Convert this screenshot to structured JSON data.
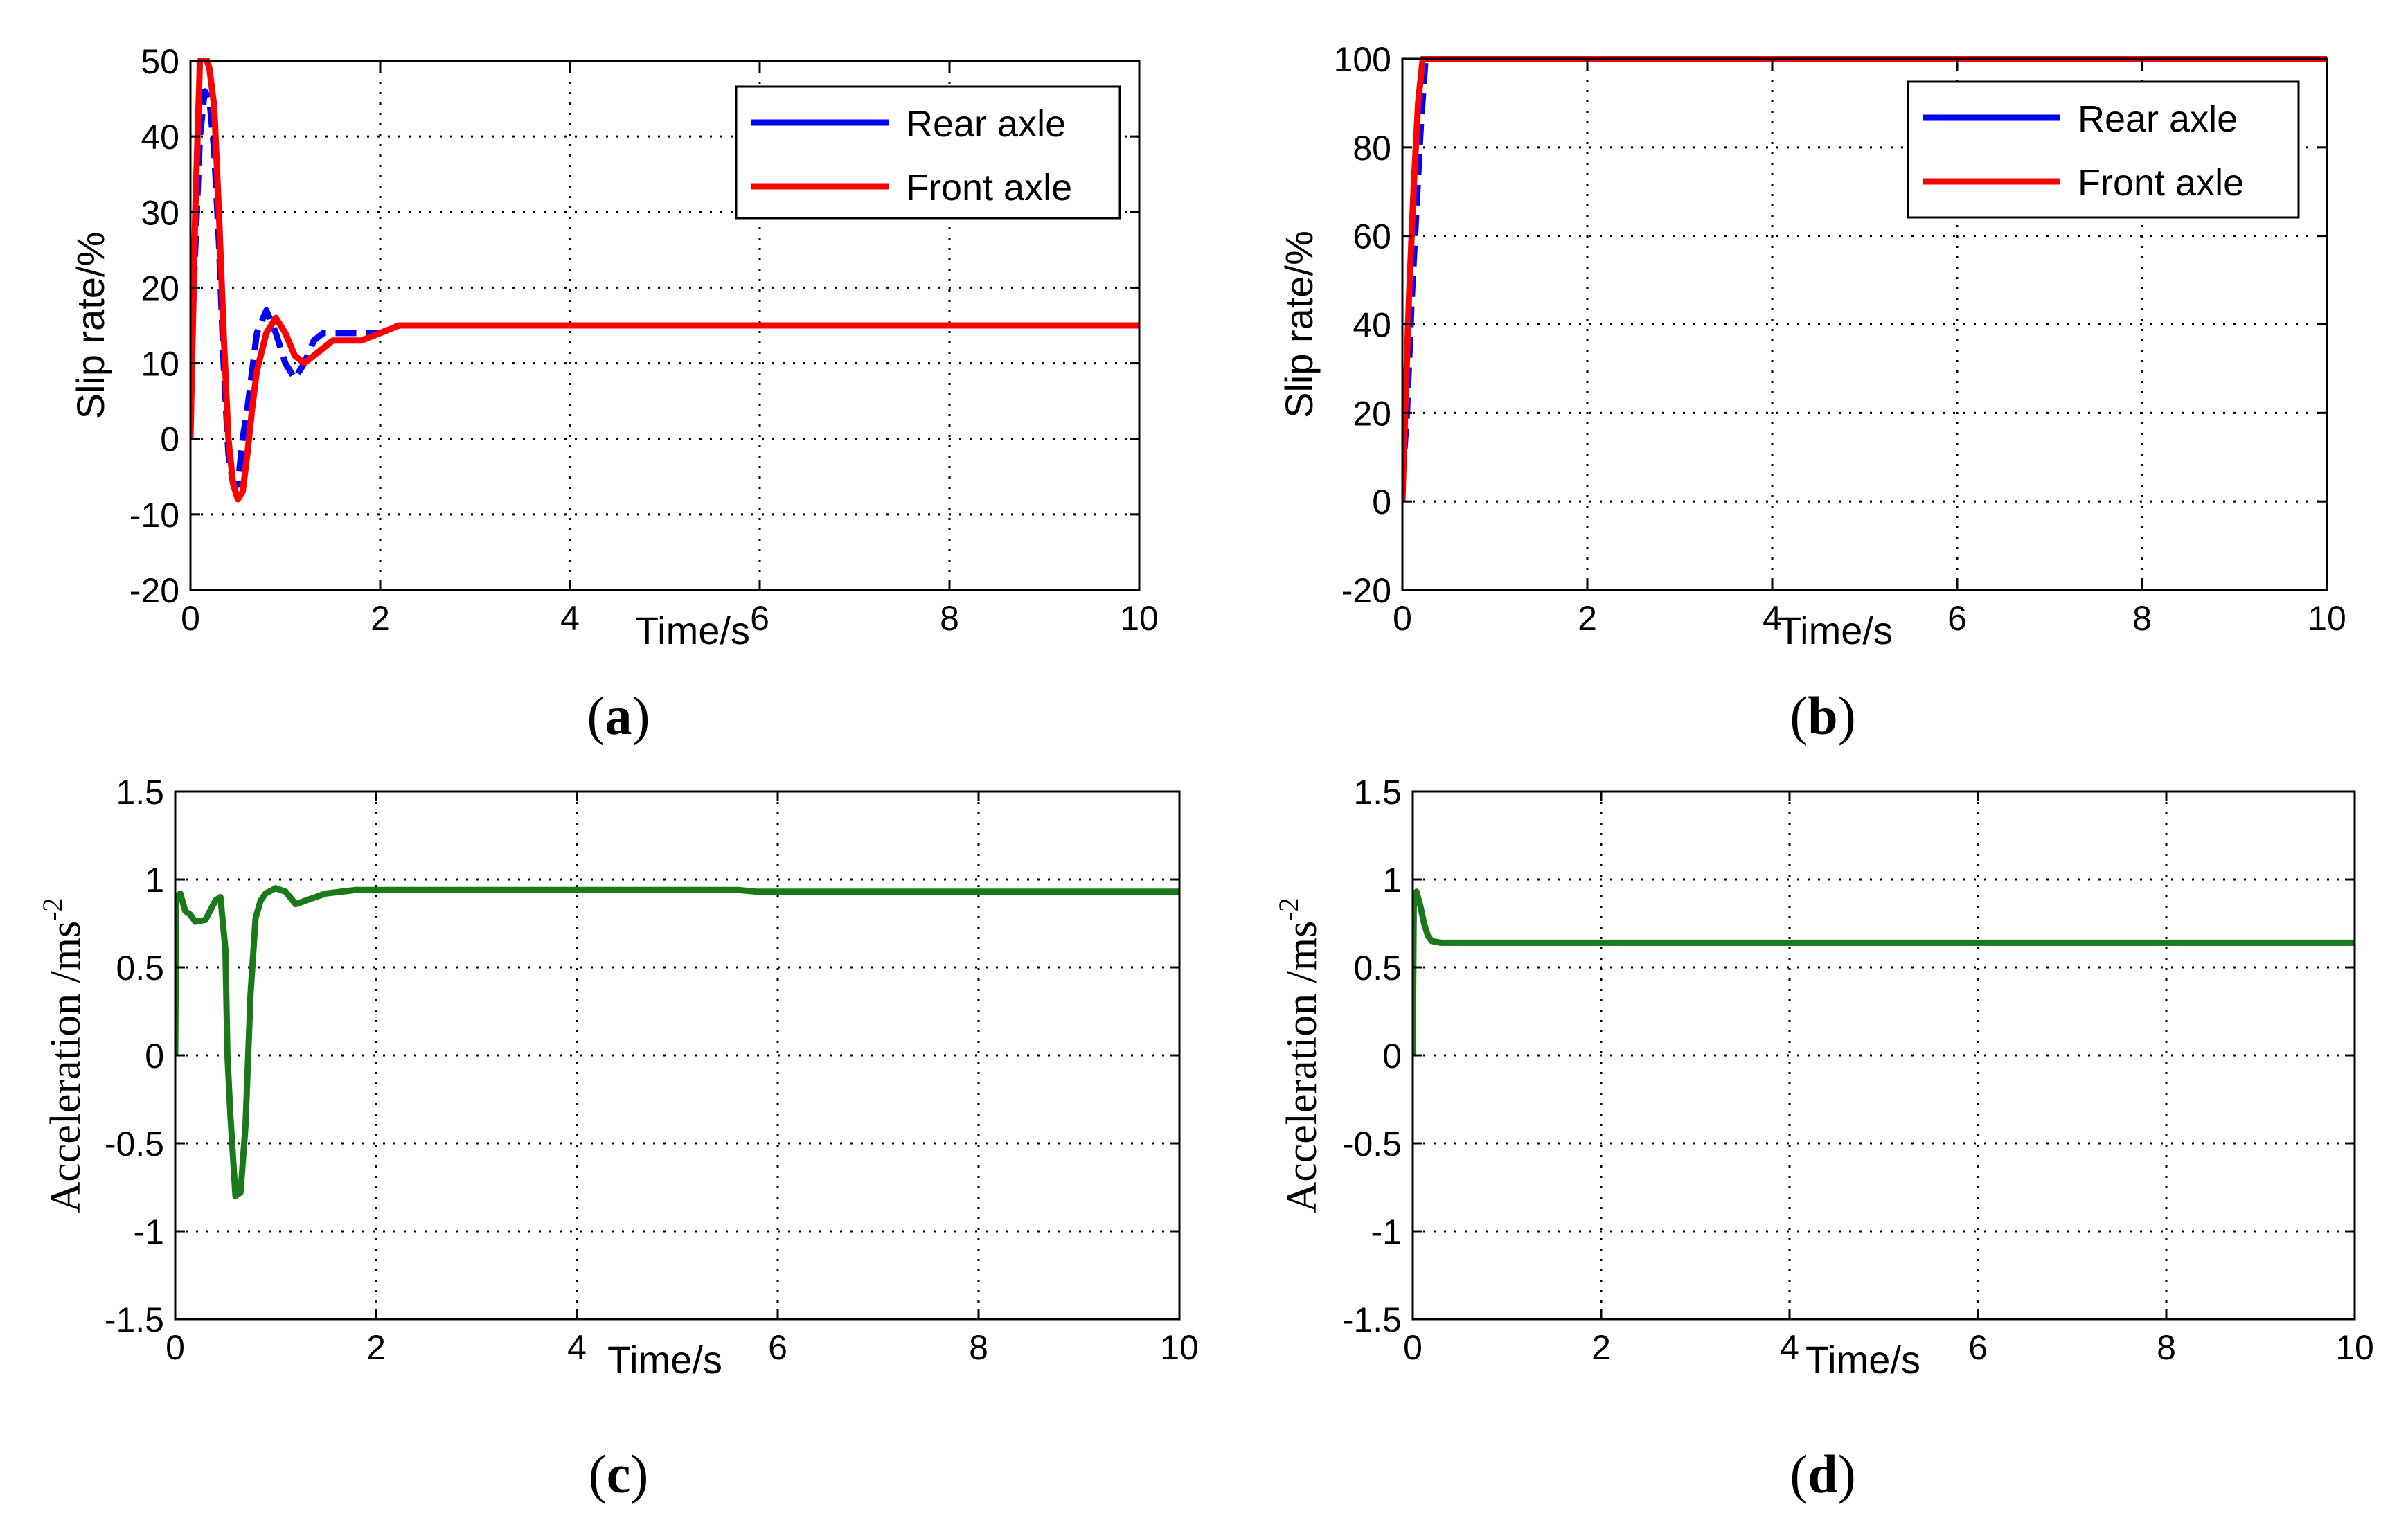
{
  "chart_data": [
    {
      "id": "a",
      "type": "line",
      "caption_letter": "a",
      "xlabel": "Time/s",
      "ylabel": "Slip rate/%",
      "xlim": [
        0,
        10
      ],
      "ylim": [
        -20,
        50
      ],
      "xticks": [
        0,
        2,
        4,
        6,
        8,
        10
      ],
      "yticks": [
        -20,
        -10,
        0,
        10,
        20,
        30,
        40,
        50
      ],
      "grid": true,
      "legend": {
        "position": "top-right",
        "entries": [
          "Rear axle",
          "Front axle"
        ]
      },
      "series": [
        {
          "name": "Rear axle",
          "color": "#0000ff",
          "dashed": true,
          "x": [
            0,
            0.05,
            0.1,
            0.15,
            0.2,
            0.25,
            0.3,
            0.35,
            0.4,
            0.45,
            0.5,
            0.55,
            0.6,
            0.65,
            0.7,
            0.8,
            0.9,
            1.0,
            1.1,
            1.2,
            1.3,
            1.4,
            1.5,
            1.6,
            1.8,
            2.0,
            2.2,
            2.4,
            2.6,
            3.0,
            4.0,
            5.0,
            5.9
          ],
          "y": [
            8,
            25,
            40,
            46,
            45,
            38,
            26,
            10,
            -2,
            -6,
            -6,
            0,
            4,
            9,
            14,
            17,
            14,
            10,
            8,
            10,
            13,
            14,
            14,
            14,
            14,
            14,
            15,
            15,
            15,
            15,
            15,
            15,
            15
          ]
        },
        {
          "name": "Front axle",
          "color": "#ff0000",
          "dashed": false,
          "x": [
            0,
            0.05,
            0.1,
            0.15,
            0.2,
            0.25,
            0.3,
            0.35,
            0.4,
            0.45,
            0.5,
            0.55,
            0.6,
            0.65,
            0.7,
            0.8,
            0.9,
            1.0,
            1.1,
            1.2,
            1.3,
            1.4,
            1.5,
            1.6,
            1.8,
            2.0,
            2.2,
            2.4,
            2.6,
            3.0,
            4.0,
            5.0,
            6.0,
            8.0,
            10.0
          ],
          "y": [
            0,
            30,
            50,
            51,
            49,
            44,
            30,
            14,
            0,
            -6,
            -8,
            -7,
            -2,
            4,
            9,
            14,
            16,
            14,
            11,
            10,
            11,
            12,
            13,
            13,
            13,
            14,
            15,
            15,
            15,
            15,
            15,
            15,
            15,
            15,
            15
          ]
        }
      ]
    },
    {
      "id": "b",
      "type": "line",
      "caption_letter": "b",
      "xlabel": "Time/s",
      "ylabel": "Slip rate/%",
      "xlim": [
        0,
        10
      ],
      "ylim": [
        -20,
        100
      ],
      "xticks": [
        0,
        2,
        4,
        6,
        8,
        10
      ],
      "yticks": [
        -20,
        0,
        20,
        40,
        60,
        80,
        100
      ],
      "grid": true,
      "legend": {
        "position": "top-right",
        "entries": [
          "Rear axle",
          "Front axle"
        ]
      },
      "series": [
        {
          "name": "Rear axle",
          "color": "#0000ff",
          "dashed": true,
          "x": [
            0,
            0.05,
            0.1,
            0.15,
            0.2,
            0.25,
            0.3,
            1,
            10
          ],
          "y": [
            5,
            20,
            45,
            65,
            85,
            100,
            100,
            100,
            100
          ]
        },
        {
          "name": "Front axle",
          "color": "#ff0000",
          "dashed": false,
          "x": [
            0,
            0.03,
            0.07,
            0.12,
            0.17,
            0.22,
            0.3,
            1,
            10
          ],
          "y": [
            0,
            20,
            45,
            70,
            90,
            100,
            100,
            100,
            100
          ]
        }
      ]
    },
    {
      "id": "c",
      "type": "line",
      "caption_letter": "c",
      "xlabel": "Time/s",
      "ylabel": "Acceleration /ms",
      "ylabel_sup": "-2",
      "xlim": [
        0,
        10
      ],
      "ylim": [
        -1.5,
        1.5
      ],
      "xticks": [
        0,
        2,
        4,
        6,
        8,
        10
      ],
      "yticks": [
        -1.5,
        -1,
        -0.5,
        0,
        0.5,
        1,
        1.5
      ],
      "ytick_labels": [
        "-1.5",
        "-1",
        "-0.5",
        "0",
        "0.5",
        "1",
        "1.5"
      ],
      "grid": true,
      "series": [
        {
          "name": "Acceleration",
          "color": "#1a7a1a",
          "dashed": false,
          "x": [
            0,
            0.01,
            0.05,
            0.1,
            0.15,
            0.2,
            0.3,
            0.4,
            0.45,
            0.5,
            0.52,
            0.55,
            0.6,
            0.65,
            0.7,
            0.75,
            0.8,
            0.85,
            0.9,
            1.0,
            1.1,
            1.2,
            1.3,
            1.5,
            1.8,
            2.0,
            3.0,
            4.0,
            5.0,
            5.6,
            5.8,
            7.0,
            8.0,
            10.0
          ],
          "y": [
            0,
            0.9,
            0.92,
            0.82,
            0.8,
            0.76,
            0.77,
            0.88,
            0.9,
            0.6,
            0.0,
            -0.35,
            -0.8,
            -0.78,
            -0.4,
            0.35,
            0.78,
            0.88,
            0.92,
            0.95,
            0.93,
            0.86,
            0.88,
            0.92,
            0.94,
            0.94,
            0.94,
            0.94,
            0.94,
            0.94,
            0.93,
            0.93,
            0.93,
            0.93
          ]
        }
      ]
    },
    {
      "id": "d",
      "type": "line",
      "caption_letter": "d",
      "xlabel": "Time/s",
      "ylabel": "Acceleration /ms",
      "ylabel_sup": "-2",
      "xlim": [
        0,
        10
      ],
      "ylim": [
        -1.5,
        1.5
      ],
      "xticks": [
        0,
        2,
        4,
        6,
        8,
        10
      ],
      "yticks": [
        -1.5,
        -1,
        -0.5,
        0,
        0.5,
        1,
        1.5
      ],
      "ytick_labels": [
        "-1.5",
        "-1",
        "-0.5",
        "0",
        "0.5",
        "1",
        "1.5"
      ],
      "grid": true,
      "series": [
        {
          "name": "Acceleration",
          "color": "#1a7a1a",
          "dashed": false,
          "x": [
            0,
            0.01,
            0.04,
            0.08,
            0.12,
            0.16,
            0.2,
            0.3,
            1,
            5,
            10
          ],
          "y": [
            0,
            0.85,
            0.93,
            0.85,
            0.75,
            0.68,
            0.65,
            0.64,
            0.64,
            0.64,
            0.64
          ]
        }
      ]
    }
  ]
}
